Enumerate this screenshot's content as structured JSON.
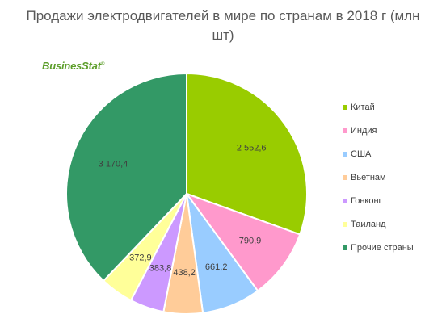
{
  "chart_data": {
    "type": "pie",
    "title": [
      "Продажи электродвигателей в мире по странам в 2018 г (млн",
      "шт)"
    ],
    "categories": [
      "Китай",
      "Индия",
      "США",
      "Вьетнам",
      "Гонконг",
      "Таиланд",
      "Прочие страны"
    ],
    "values": [
      2552.6,
      790.9,
      661.2,
      438.2,
      383.8,
      372.9,
      3170.4
    ],
    "data_labels": [
      "2 552,6",
      "790,9",
      "661,2",
      "438,2",
      "383,8",
      "372,9",
      "3 170,4"
    ],
    "colors": [
      "#99cc00",
      "#ff99cc",
      "#99ccff",
      "#ffcc99",
      "#cc99ff",
      "#ffff99",
      "#339966"
    ],
    "legend_position": "right",
    "start_angle_deg": 0,
    "direction": "clockwise"
  },
  "logo": {
    "text": "BusinesStat",
    "mark": "®"
  }
}
